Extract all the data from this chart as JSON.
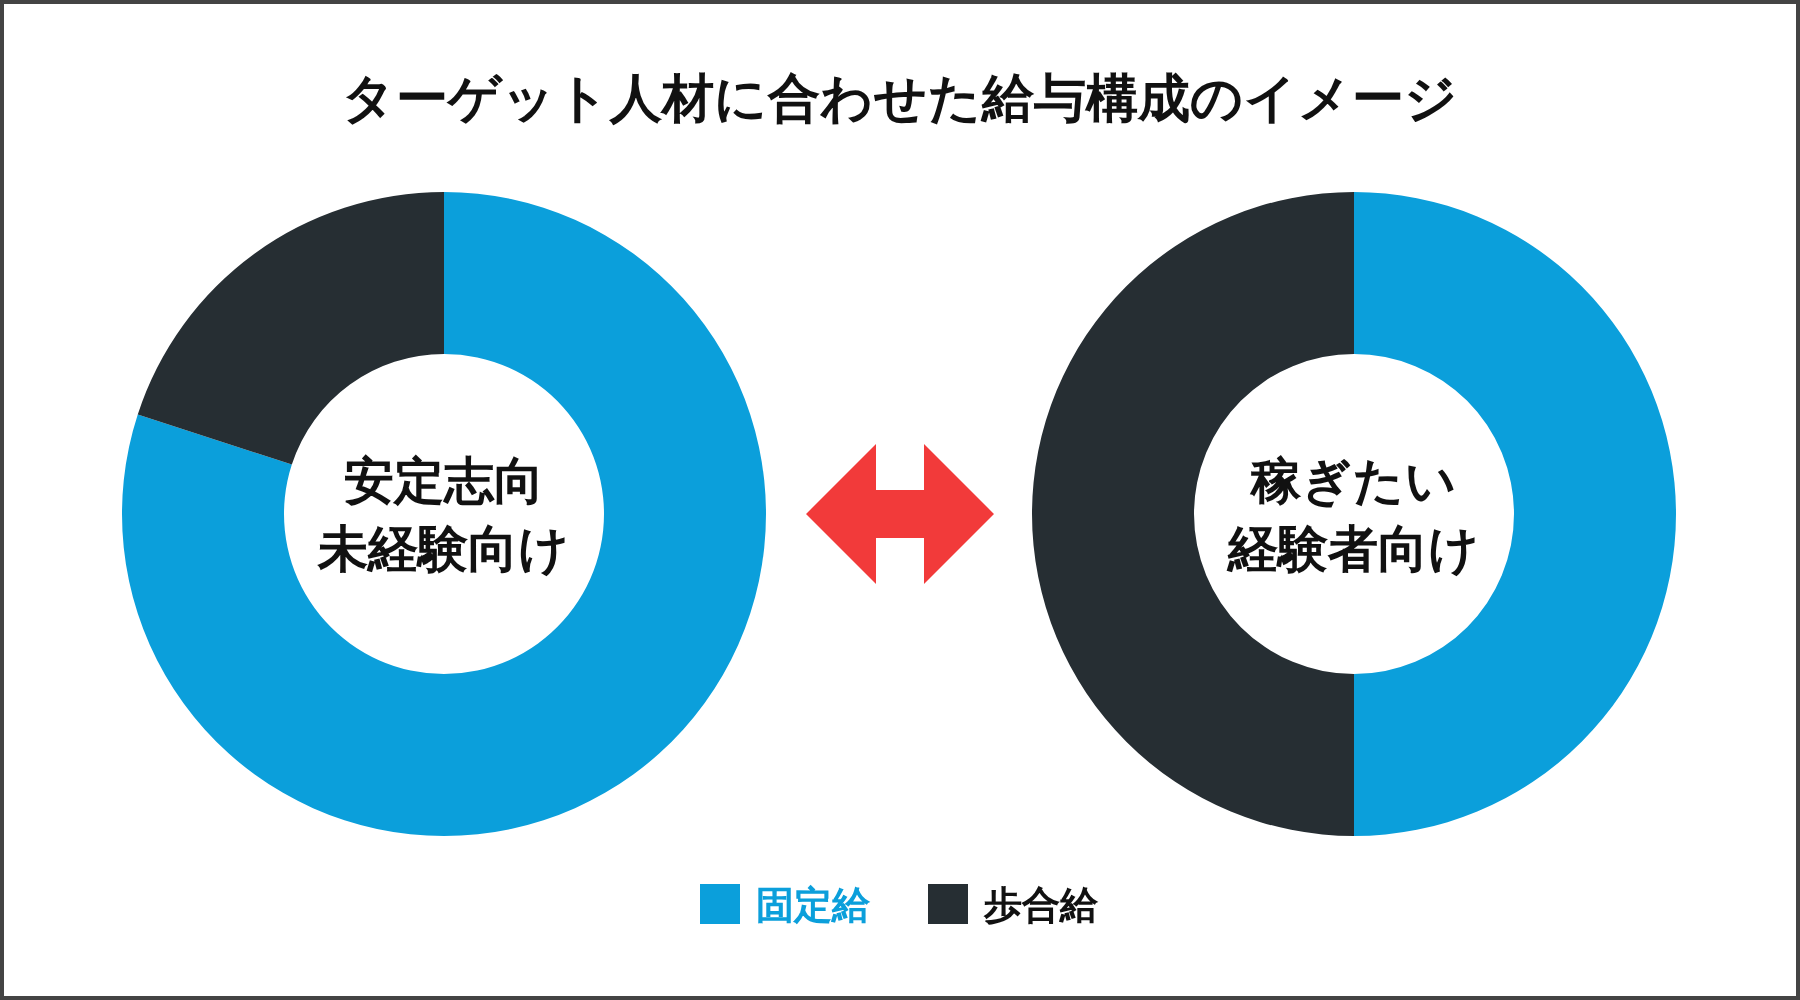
{
  "chart_data": [
    {
      "type": "donut",
      "title": "ターゲット人材に合わせた給与構成のイメージ",
      "categories": [
        "固定給",
        "歩合給"
      ],
      "values": [
        80,
        20
      ],
      "colors": [
        "#0b9fdb",
        "#262e33"
      ],
      "annotations": [
        "安定志向",
        "未経験向け"
      ],
      "legend": "bottom"
    },
    {
      "type": "donut",
      "values": [
        50,
        50
      ],
      "colors": [
        "#0b9fdb",
        "#262e33"
      ],
      "annotations": [
        "稼ぎたい",
        "経験者向け"
      ]
    }
  ]
}
